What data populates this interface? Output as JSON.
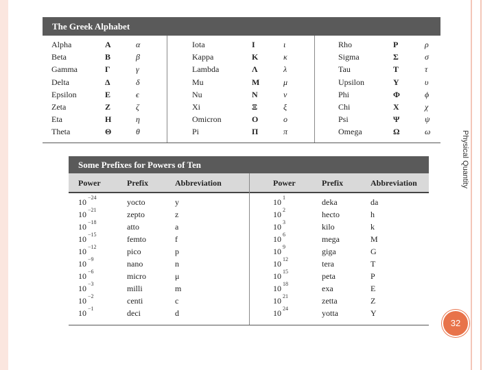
{
  "side_label": "Physical Quantity",
  "page_number": "32",
  "greek_table": {
    "title": "The Greek Alphabet",
    "rows": [
      [
        "Alpha",
        "Α",
        "α",
        "Iota",
        "Ι",
        "ι",
        "Rho",
        "Ρ",
        "ρ"
      ],
      [
        "Beta",
        "Β",
        "β",
        "Kappa",
        "Κ",
        "κ",
        "Sigma",
        "Σ",
        "σ"
      ],
      [
        "Gamma",
        "Γ",
        "γ",
        "Lambda",
        "Λ",
        "λ",
        "Tau",
        "Τ",
        "τ"
      ],
      [
        "Delta",
        "Δ",
        "δ",
        "Mu",
        "Μ",
        "μ",
        "Upsilon",
        "Υ",
        "υ"
      ],
      [
        "Epsilon",
        "Ε",
        "ϵ",
        "Nu",
        "Ν",
        "ν",
        "Phi",
        "Φ",
        "ϕ"
      ],
      [
        "Zeta",
        "Ζ",
        "ζ",
        "Xi",
        "Ξ",
        "ξ",
        "Chi",
        "Χ",
        "χ"
      ],
      [
        "Eta",
        "Η",
        "η",
        "Omicron",
        "Ο",
        "ο",
        "Psi",
        "Ψ",
        "ψ"
      ],
      [
        "Theta",
        "Θ",
        "θ",
        "Pi",
        "Π",
        "π",
        "Omega",
        "Ω",
        "ω"
      ]
    ]
  },
  "prefix_table": {
    "title": "Some Prefixes for Powers of Ten",
    "headers": [
      "Power",
      "Prefix",
      "Abbreviation",
      "Power",
      "Prefix",
      "Abbreviation"
    ],
    "rows": [
      [
        "10",
        "−24",
        "yocto",
        "y",
        "10",
        "1",
        "deka",
        "da"
      ],
      [
        "10",
        "−21",
        "zepto",
        "z",
        "10",
        "2",
        "hecto",
        "h"
      ],
      [
        "10",
        "−18",
        "atto",
        "a",
        "10",
        "3",
        "kilo",
        "k"
      ],
      [
        "10",
        "−15",
        "femto",
        "f",
        "10",
        "6",
        "mega",
        "M"
      ],
      [
        "10",
        "−12",
        "pico",
        "p",
        "10",
        "9",
        "giga",
        "G"
      ],
      [
        "10",
        "−9",
        "nano",
        "n",
        "10",
        "12",
        "tera",
        "T"
      ],
      [
        "10",
        "−6",
        "micro",
        "μ",
        "10",
        "15",
        "peta",
        "P"
      ],
      [
        "10",
        "−3",
        "milli",
        "m",
        "10",
        "18",
        "exa",
        "E"
      ],
      [
        "10",
        "−2",
        "centi",
        "c",
        "10",
        "21",
        "zetta",
        "Z"
      ],
      [
        "10",
        "−1",
        "deci",
        "d",
        "10",
        "24",
        "yotta",
        "Y"
      ]
    ]
  }
}
